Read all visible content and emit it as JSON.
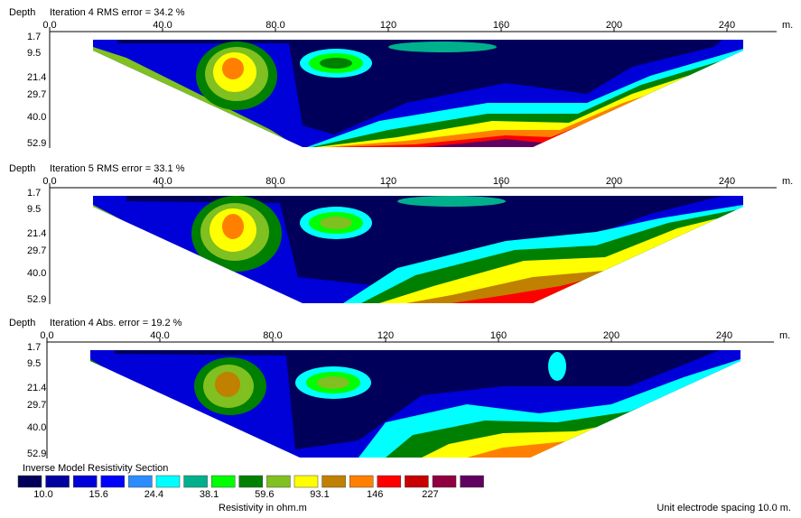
{
  "panels": [
    {
      "depth_label": "Depth",
      "title": "Iteration 4 RMS error = 34.2 %",
      "x_ticks": [
        "0.0",
        "40.0",
        "80.0",
        "120",
        "160",
        "200",
        "240"
      ],
      "x_unit": "m.",
      "depth_ticks": [
        "1.7",
        "9.5",
        "21.4",
        "29.7",
        "40.0",
        "52.9"
      ]
    },
    {
      "depth_label": "Depth",
      "title": "Iteration 5 RMS error = 33.1 %",
      "x_ticks": [
        "0.0",
        "40.0",
        "80.0",
        "120",
        "160",
        "200",
        "240"
      ],
      "x_unit": "m.",
      "depth_ticks": [
        "1.7",
        "9.5",
        "21.4",
        "29.7",
        "40.0",
        "52.9"
      ]
    },
    {
      "depth_label": "Depth",
      "title": "Iteration 4 Abs. error = 19.2 %",
      "x_ticks": [
        "0.0",
        "40.0",
        "80.0",
        "120",
        "160",
        "200",
        "240"
      ],
      "x_unit": "m.",
      "depth_ticks": [
        "1.7",
        "9.5",
        "21.4",
        "29.7",
        "40.0",
        "52.9"
      ]
    }
  ],
  "legend": {
    "title": "Inverse Model Resistivity Section",
    "colors": [
      "#00005a",
      "#0000a0",
      "#0000d8",
      "#0000ff",
      "#2a8cff",
      "#00ffff",
      "#00b08c",
      "#00ff00",
      "#008000",
      "#80c020",
      "#ffff00",
      "#c08000",
      "#ff8000",
      "#ff0000",
      "#c80000",
      "#900040",
      "#600060"
    ],
    "labels": [
      "10.0",
      "15.6",
      "24.4",
      "38.1",
      "59.6",
      "93.1",
      "146",
      "227"
    ],
    "axis_label": "Resistivity in ohm.m"
  },
  "footnote": "Unit electrode spacing 10.0 m."
}
